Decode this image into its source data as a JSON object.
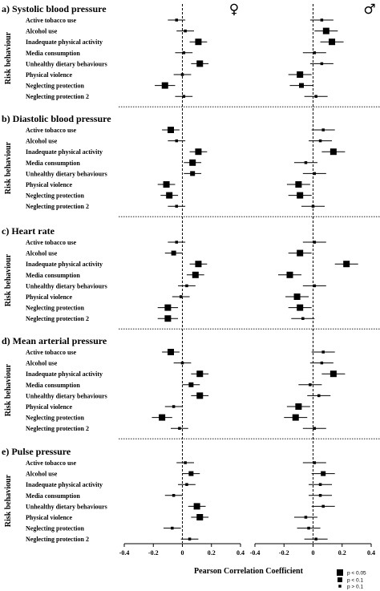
{
  "figure": {
    "female_symbol": "♀",
    "male_symbol": "♂",
    "ylabel": "Risk behaviour",
    "xlabel": "Pearson Correlation Coefficient"
  },
  "chart_data": {
    "type": "forest",
    "x_ticks": [
      "-0.4",
      "-0.2",
      "0",
      "0.2",
      "0.4"
    ],
    "xlim": [
      -0.4,
      0.4
    ],
    "reference_line": 0,
    "categories": [
      "Active tobacco use",
      "Alcohol use",
      "Inadequate physical activity",
      "Media consumption",
      "Unhealthy dietary behaviours",
      "Physical violence",
      "Neglecting protection",
      "Neglecting protection 2"
    ],
    "legend": [
      {
        "label": "p < 0.05",
        "size": "large"
      },
      {
        "label": "p < 0.1",
        "size": "medium"
      },
      {
        "label": "p > 0.1",
        "size": "small"
      }
    ],
    "panels": [
      {
        "title": "a) Systolic blood pressure",
        "female": [
          {
            "est": -0.04,
            "lo": -0.1,
            "hi": 0.02,
            "sig": "small"
          },
          {
            "est": 0.02,
            "lo": -0.04,
            "hi": 0.08,
            "sig": "small"
          },
          {
            "est": 0.11,
            "lo": 0.05,
            "hi": 0.17,
            "sig": "large"
          },
          {
            "est": 0.01,
            "lo": -0.05,
            "hi": 0.07,
            "sig": "small"
          },
          {
            "est": 0.12,
            "lo": 0.06,
            "hi": 0.18,
            "sig": "large"
          },
          {
            "est": 0.0,
            "lo": -0.06,
            "hi": 0.06,
            "sig": "small"
          },
          {
            "est": -0.12,
            "lo": -0.19,
            "hi": -0.05,
            "sig": "large"
          },
          {
            "est": 0.01,
            "lo": -0.05,
            "hi": 0.07,
            "sig": "small"
          }
        ],
        "male": [
          {
            "est": 0.06,
            "lo": -0.02,
            "hi": 0.14,
            "sig": "small"
          },
          {
            "est": 0.09,
            "lo": 0.01,
            "hi": 0.17,
            "sig": "large"
          },
          {
            "est": 0.13,
            "lo": 0.05,
            "hi": 0.21,
            "sig": "large"
          },
          {
            "est": 0.01,
            "lo": -0.07,
            "hi": 0.09,
            "sig": "small"
          },
          {
            "est": 0.06,
            "lo": -0.02,
            "hi": 0.14,
            "sig": "small"
          },
          {
            "est": -0.09,
            "lo": -0.17,
            "hi": -0.01,
            "sig": "large"
          },
          {
            "est": -0.08,
            "lo": -0.16,
            "hi": 0.0,
            "sig": "medium"
          },
          {
            "est": 0.02,
            "lo": -0.06,
            "hi": 0.1,
            "sig": "small"
          }
        ]
      },
      {
        "title": "b) Diastolic blood pressure",
        "female": [
          {
            "est": -0.08,
            "lo": -0.14,
            "hi": -0.02,
            "sig": "large"
          },
          {
            "est": -0.04,
            "lo": -0.1,
            "hi": 0.02,
            "sig": "small"
          },
          {
            "est": 0.11,
            "lo": 0.05,
            "hi": 0.17,
            "sig": "large"
          },
          {
            "est": 0.07,
            "lo": 0.01,
            "hi": 0.13,
            "sig": "large"
          },
          {
            "est": 0.07,
            "lo": 0.01,
            "hi": 0.13,
            "sig": "medium"
          },
          {
            "est": -0.11,
            "lo": -0.17,
            "hi": -0.05,
            "sig": "large"
          },
          {
            "est": -0.09,
            "lo": -0.15,
            "hi": -0.03,
            "sig": "large"
          },
          {
            "est": -0.04,
            "lo": -0.1,
            "hi": 0.02,
            "sig": "small"
          }
        ],
        "male": [
          {
            "est": 0.07,
            "lo": -0.01,
            "hi": 0.15,
            "sig": "small"
          },
          {
            "est": 0.05,
            "lo": -0.03,
            "hi": 0.13,
            "sig": "small"
          },
          {
            "est": 0.14,
            "lo": 0.06,
            "hi": 0.22,
            "sig": "large"
          },
          {
            "est": -0.05,
            "lo": -0.13,
            "hi": 0.03,
            "sig": "small"
          },
          {
            "est": 0.01,
            "lo": -0.07,
            "hi": 0.09,
            "sig": "small"
          },
          {
            "est": -0.1,
            "lo": -0.18,
            "hi": -0.02,
            "sig": "large"
          },
          {
            "est": -0.09,
            "lo": -0.17,
            "hi": -0.01,
            "sig": "large"
          },
          {
            "est": 0.0,
            "lo": -0.08,
            "hi": 0.08,
            "sig": "small"
          }
        ]
      },
      {
        "title": "c) Heart rate",
        "female": [
          {
            "est": -0.04,
            "lo": -0.1,
            "hi": 0.02,
            "sig": "small"
          },
          {
            "est": -0.06,
            "lo": -0.12,
            "hi": 0.0,
            "sig": "medium"
          },
          {
            "est": 0.11,
            "lo": 0.05,
            "hi": 0.17,
            "sig": "large"
          },
          {
            "est": 0.09,
            "lo": 0.03,
            "hi": 0.15,
            "sig": "large"
          },
          {
            "est": 0.03,
            "lo": -0.03,
            "hi": 0.09,
            "sig": "small"
          },
          {
            "est": -0.01,
            "lo": -0.07,
            "hi": 0.05,
            "sig": "small"
          },
          {
            "est": -0.1,
            "lo": -0.17,
            "hi": -0.03,
            "sig": "large"
          },
          {
            "est": -0.1,
            "lo": -0.17,
            "hi": -0.03,
            "sig": "large"
          }
        ],
        "male": [
          {
            "est": 0.01,
            "lo": -0.07,
            "hi": 0.09,
            "sig": "small"
          },
          {
            "est": -0.09,
            "lo": -0.17,
            "hi": -0.01,
            "sig": "large"
          },
          {
            "est": 0.23,
            "lo": 0.15,
            "hi": 0.31,
            "sig": "large"
          },
          {
            "est": -0.16,
            "lo": -0.24,
            "hi": -0.08,
            "sig": "large"
          },
          {
            "est": 0.01,
            "lo": -0.07,
            "hi": 0.09,
            "sig": "small"
          },
          {
            "est": -0.11,
            "lo": -0.19,
            "hi": -0.03,
            "sig": "large"
          },
          {
            "est": -0.09,
            "lo": -0.17,
            "hi": -0.01,
            "sig": "large"
          },
          {
            "est": -0.07,
            "lo": -0.15,
            "hi": 0.01,
            "sig": "small"
          }
        ]
      },
      {
        "title": "d) Mean arterial pressure",
        "female": [
          {
            "est": -0.08,
            "lo": -0.14,
            "hi": -0.02,
            "sig": "large"
          },
          {
            "est": 0.0,
            "lo": -0.06,
            "hi": 0.06,
            "sig": "small"
          },
          {
            "est": 0.12,
            "lo": 0.06,
            "hi": 0.18,
            "sig": "large"
          },
          {
            "est": 0.06,
            "lo": 0.0,
            "hi": 0.12,
            "sig": "medium"
          },
          {
            "est": 0.12,
            "lo": 0.06,
            "hi": 0.18,
            "sig": "large"
          },
          {
            "est": -0.06,
            "lo": -0.12,
            "hi": 0.0,
            "sig": "small"
          },
          {
            "est": -0.14,
            "lo": -0.21,
            "hi": -0.07,
            "sig": "large"
          },
          {
            "est": -0.02,
            "lo": -0.08,
            "hi": 0.04,
            "sig": "small"
          }
        ],
        "male": [
          {
            "est": 0.07,
            "lo": -0.01,
            "hi": 0.15,
            "sig": "small"
          },
          {
            "est": 0.06,
            "lo": -0.02,
            "hi": 0.14,
            "sig": "small"
          },
          {
            "est": 0.14,
            "lo": 0.06,
            "hi": 0.22,
            "sig": "large"
          },
          {
            "est": -0.02,
            "lo": -0.1,
            "hi": 0.06,
            "sig": "small"
          },
          {
            "est": 0.04,
            "lo": -0.04,
            "hi": 0.12,
            "sig": "small"
          },
          {
            "est": -0.1,
            "lo": -0.18,
            "hi": -0.02,
            "sig": "large"
          },
          {
            "est": -0.12,
            "lo": -0.2,
            "hi": -0.04,
            "sig": "large"
          },
          {
            "est": 0.01,
            "lo": -0.07,
            "hi": 0.09,
            "sig": "small"
          }
        ]
      },
      {
        "title": "e) Pulse pressure",
        "female": [
          {
            "est": 0.02,
            "lo": -0.04,
            "hi": 0.08,
            "sig": "small"
          },
          {
            "est": 0.06,
            "lo": 0.0,
            "hi": 0.12,
            "sig": "medium"
          },
          {
            "est": 0.03,
            "lo": -0.03,
            "hi": 0.09,
            "sig": "small"
          },
          {
            "est": -0.06,
            "lo": -0.12,
            "hi": 0.0,
            "sig": "small"
          },
          {
            "est": 0.1,
            "lo": 0.04,
            "hi": 0.16,
            "sig": "large"
          },
          {
            "est": 0.12,
            "lo": 0.06,
            "hi": 0.18,
            "sig": "large"
          },
          {
            "est": -0.07,
            "lo": -0.13,
            "hi": -0.01,
            "sig": "small"
          },
          {
            "est": 0.05,
            "lo": -0.01,
            "hi": 0.11,
            "sig": "small"
          }
        ],
        "male": [
          {
            "est": 0.01,
            "lo": -0.07,
            "hi": 0.09,
            "sig": "small"
          },
          {
            "est": 0.07,
            "lo": -0.01,
            "hi": 0.15,
            "sig": "medium"
          },
          {
            "est": 0.05,
            "lo": -0.03,
            "hi": 0.13,
            "sig": "small"
          },
          {
            "est": 0.05,
            "lo": -0.03,
            "hi": 0.13,
            "sig": "small"
          },
          {
            "est": 0.07,
            "lo": -0.01,
            "hi": 0.15,
            "sig": "small"
          },
          {
            "est": -0.05,
            "lo": -0.13,
            "hi": 0.03,
            "sig": "small"
          },
          {
            "est": -0.03,
            "lo": -0.11,
            "hi": 0.05,
            "sig": "small"
          },
          {
            "est": 0.02,
            "lo": -0.06,
            "hi": 0.1,
            "sig": "small"
          }
        ]
      }
    ]
  }
}
